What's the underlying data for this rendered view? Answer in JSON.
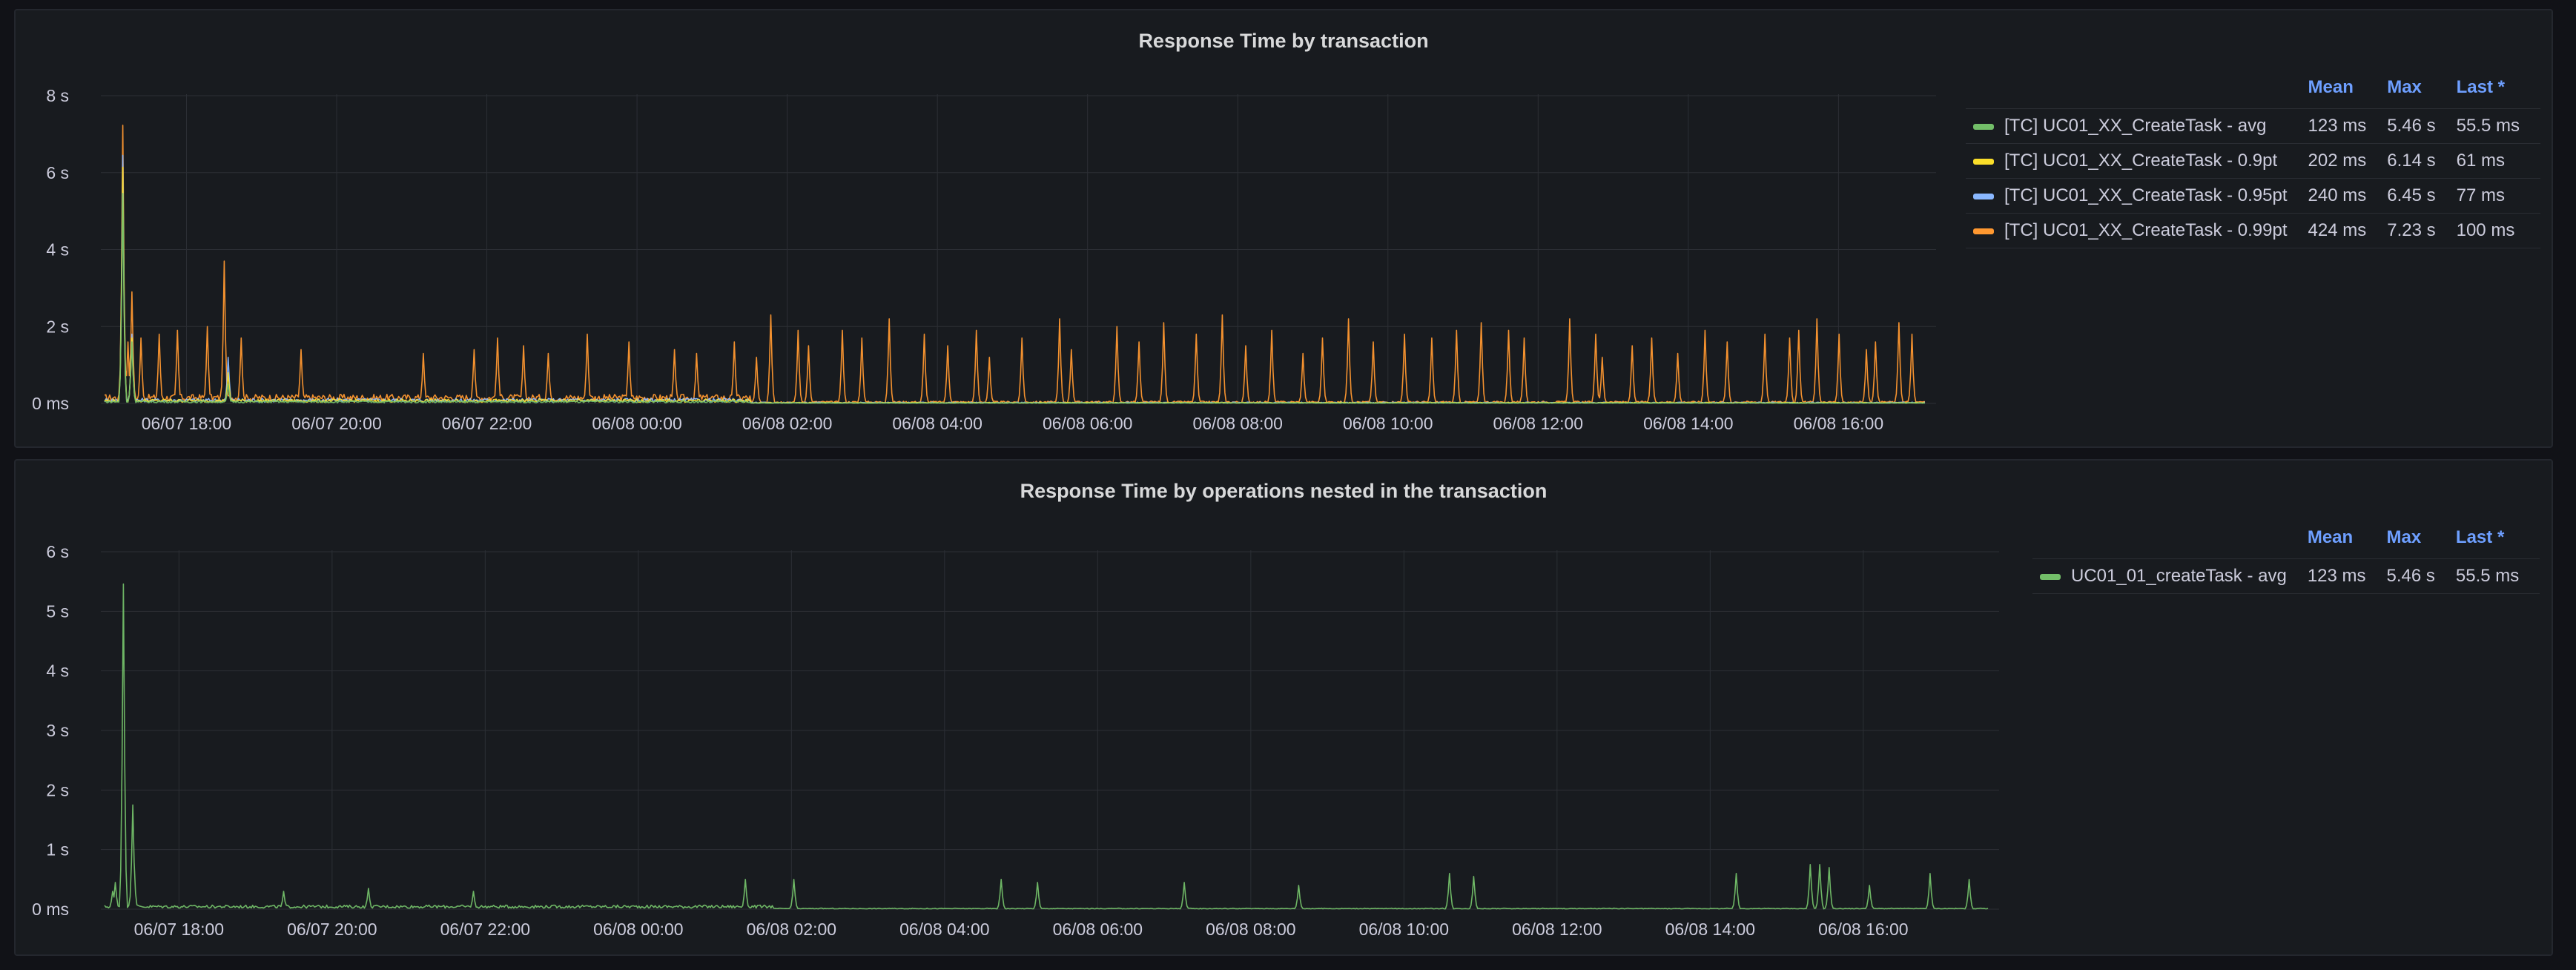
{
  "panels": [
    {
      "title": "Response Time by transaction",
      "legend_headers": [
        "Mean",
        "Max",
        "Last *"
      ],
      "legend": [
        {
          "name": "[TC] UC01_XX_CreateTask - avg",
          "color": "#73bf69",
          "mean": "123 ms",
          "max": "5.46 s",
          "last": "55.5 ms"
        },
        {
          "name": "[TC] UC01_XX_CreateTask - 0.9pt",
          "color": "#fade2a",
          "mean": "202 ms",
          "max": "6.14 s",
          "last": "61 ms"
        },
        {
          "name": "[TC] UC01_XX_CreateTask - 0.95pt",
          "color": "#8ab8ff",
          "mean": "240 ms",
          "max": "6.45 s",
          "last": "77 ms"
        },
        {
          "name": "[TC] UC01_XX_CreateTask - 0.99pt",
          "color": "#ff9830",
          "mean": "424 ms",
          "max": "7.23 s",
          "last": "100 ms"
        }
      ]
    },
    {
      "title": "Response Time by operations nested in the transaction",
      "legend_headers": [
        "Mean",
        "Max",
        "Last *"
      ],
      "legend": [
        {
          "name": "UC01_01_createTask - avg",
          "color": "#73bf69",
          "mean": "123 ms",
          "max": "5.46 s",
          "last": "55.5 ms"
        }
      ]
    }
  ],
  "chart_data": [
    {
      "type": "line",
      "title": "Response Time by transaction",
      "x_unit": "time",
      "x_range": [
        "06/07 17:10",
        "06/08 17:00"
      ],
      "x_ticks": [
        "06/07 18:00",
        "06/07 20:00",
        "06/07 22:00",
        "06/08 00:00",
        "06/08 02:00",
        "06/08 04:00",
        "06/08 06:00",
        "06/08 08:00",
        "06/08 10:00",
        "06/08 12:00",
        "06/08 14:00",
        "06/08 16:00"
      ],
      "y_ticks": [
        "0 ms",
        "2 s",
        "4 s",
        "6 s",
        "8 s"
      ],
      "ylim": [
        0,
        8
      ],
      "y_unit": "s",
      "grid": true,
      "legend_position": "right",
      "series": [
        {
          "name": "[TC] UC01_XX_CreateTask - avg",
          "color": "#73bf69",
          "mean": 0.123,
          "max": 5.46,
          "last": 0.0555,
          "peaks": [
            [
              0.97,
              5.46
            ],
            [
              1.5,
              1.6
            ],
            [
              6.8,
              0.5
            ]
          ]
        },
        {
          "name": "[TC] UC01_XX_CreateTask - 0.9pt",
          "color": "#fade2a",
          "mean": 0.202,
          "max": 6.14,
          "last": 0.061,
          "peaks": [
            [
              0.97,
              6.14
            ],
            [
              1.5,
              1.7
            ],
            [
              6.8,
              0.8
            ]
          ]
        },
        {
          "name": "[TC] UC01_XX_CreateTask - 0.95pt",
          "color": "#8ab8ff",
          "mean": 0.24,
          "max": 6.45,
          "last": 0.077,
          "peaks": [
            [
              0.97,
              6.45
            ],
            [
              1.5,
              1.8
            ],
            [
              6.8,
              1.2
            ]
          ]
        },
        {
          "name": "[TC] UC01_XX_CreateTask - 0.99pt",
          "color": "#ff9830",
          "mean": 0.424,
          "max": 7.23,
          "last": 0.1,
          "peaks": [
            [
              0.97,
              7.23
            ],
            [
              1.28,
              1.6
            ],
            [
              1.5,
              2.9
            ],
            [
              2.0,
              1.7
            ],
            [
              3.0,
              1.8
            ],
            [
              4.0,
              1.9
            ],
            [
              5.65,
              2.0
            ],
            [
              6.6,
              3.7
            ],
            [
              7.5,
              1.7
            ],
            [
              10.8,
              1.4
            ],
            [
              17.5,
              1.3
            ],
            [
              20.3,
              1.4
            ],
            [
              21.6,
              1.7
            ],
            [
              23.0,
              1.5
            ],
            [
              24.4,
              1.3
            ],
            [
              26.5,
              1.8
            ],
            [
              28.8,
              1.6
            ],
            [
              31.3,
              1.4
            ],
            [
              32.5,
              1.3
            ],
            [
              34.6,
              1.6
            ],
            [
              35.8,
              1.2
            ],
            [
              36.6,
              2.3
            ],
            [
              38.1,
              1.9
            ],
            [
              38.7,
              1.5
            ],
            [
              40.5,
              1.9
            ],
            [
              41.6,
              1.7
            ],
            [
              43.1,
              2.2
            ],
            [
              45.0,
              1.8
            ],
            [
              46.3,
              1.5
            ],
            [
              47.9,
              1.9
            ],
            [
              48.6,
              1.2
            ],
            [
              50.4,
              1.7
            ],
            [
              52.5,
              2.2
            ],
            [
              53.1,
              1.4
            ],
            [
              55.6,
              2.0
            ],
            [
              56.8,
              1.6
            ],
            [
              58.2,
              2.1
            ],
            [
              60.0,
              1.8
            ],
            [
              61.4,
              2.3
            ],
            [
              62.7,
              1.5
            ],
            [
              64.1,
              1.9
            ],
            [
              65.8,
              1.3
            ],
            [
              66.9,
              1.7
            ],
            [
              68.3,
              2.2
            ],
            [
              69.7,
              1.6
            ],
            [
              71.4,
              1.8
            ],
            [
              72.9,
              1.7
            ],
            [
              74.3,
              1.9
            ],
            [
              75.6,
              2.1
            ],
            [
              77.1,
              1.9
            ],
            [
              78.0,
              1.7
            ],
            [
              80.5,
              2.2
            ],
            [
              81.9,
              1.8
            ],
            [
              82.3,
              1.2
            ],
            [
              83.9,
              1.5
            ],
            [
              85.0,
              1.7
            ],
            [
              86.4,
              1.3
            ],
            [
              87.9,
              1.9
            ],
            [
              89.1,
              1.6
            ],
            [
              91.2,
              1.8
            ],
            [
              92.6,
              1.7
            ],
            [
              93.1,
              1.9
            ],
            [
              94.1,
              2.2
            ],
            [
              95.3,
              1.8
            ],
            [
              96.8,
              1.4
            ],
            [
              97.3,
              1.6
            ],
            [
              98.6,
              2.1
            ],
            [
              99.3,
              1.8
            ]
          ]
        }
      ]
    },
    {
      "type": "line",
      "title": "Response Time by operations nested in the transaction",
      "x_unit": "time",
      "x_range": [
        "06/07 17:10",
        "06/08 17:00"
      ],
      "x_ticks": [
        "06/07 18:00",
        "06/07 20:00",
        "06/07 22:00",
        "06/08 00:00",
        "06/08 02:00",
        "06/08 04:00",
        "06/08 06:00",
        "06/08 08:00",
        "06/08 10:00",
        "06/08 12:00",
        "06/08 14:00",
        "06/08 16:00"
      ],
      "y_ticks": [
        "0 ms",
        "1 s",
        "2 s",
        "3 s",
        "4 s",
        "5 s",
        "6 s"
      ],
      "ylim": [
        0,
        6
      ],
      "y_unit": "s",
      "grid": true,
      "legend_position": "right",
      "series": [
        {
          "name": "UC01_01_createTask - avg",
          "color": "#73bf69",
          "mean": 0.123,
          "max": 5.46,
          "last": 0.0555,
          "peaks": [
            [
              0.97,
              5.46
            ],
            [
              1.5,
              1.75
            ],
            [
              1.6,
              0.6
            ],
            [
              0.6,
              0.45
            ],
            [
              0.4,
              0.3
            ],
            [
              9.5,
              0.3
            ],
            [
              14.0,
              0.35
            ],
            [
              19.6,
              0.3
            ],
            [
              34.0,
              0.5
            ],
            [
              36.6,
              0.5
            ],
            [
              47.6,
              0.5
            ],
            [
              49.5,
              0.45
            ],
            [
              57.3,
              0.45
            ],
            [
              63.4,
              0.4
            ],
            [
              71.4,
              0.6
            ],
            [
              72.7,
              0.55
            ],
            [
              86.6,
              0.6
            ],
            [
              90.6,
              0.75
            ],
            [
              91.1,
              0.75
            ],
            [
              91.6,
              0.7
            ],
            [
              93.7,
              0.4
            ],
            [
              96.9,
              0.6
            ],
            [
              99.0,
              0.5
            ]
          ]
        }
      ]
    }
  ]
}
